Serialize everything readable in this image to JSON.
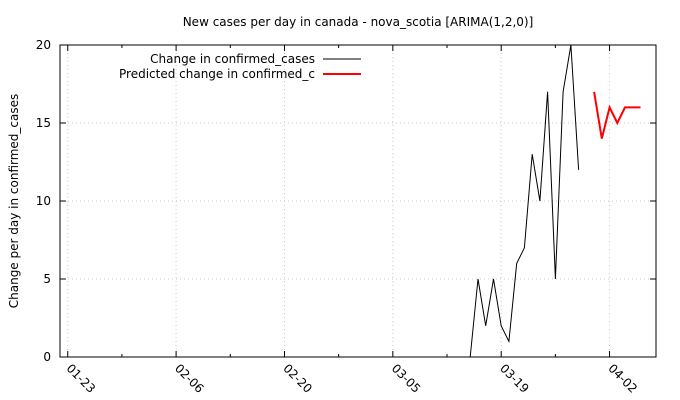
{
  "chart_data": {
    "type": "line",
    "title": "New cases per day in canada - nova_scotia [ARIMA(1,2,0)]",
    "xlabel": "",
    "ylabel": "Change per day in confirmed_cases",
    "ylim": [
      0,
      20
    ],
    "x_is_date": true,
    "x_ticks": [
      "01-23",
      "02-06",
      "02-20",
      "03-05",
      "03-19",
      "04-02"
    ],
    "y_ticks": [
      0,
      5,
      10,
      15,
      20
    ],
    "grid": true,
    "legend_position": "top-left",
    "series": [
      {
        "name": "Change in confirmed_cases",
        "color": "#000000",
        "x": [
          "03-15",
          "03-16",
          "03-17",
          "03-18",
          "03-19",
          "03-20",
          "03-21",
          "03-22",
          "03-23",
          "03-24",
          "03-25",
          "03-26",
          "03-27",
          "03-28",
          "03-29"
        ],
        "values": [
          0,
          5,
          2,
          5,
          2,
          1,
          6,
          7,
          13,
          10,
          17,
          5,
          17,
          20,
          12
        ]
      },
      {
        "name": "Predicted change in confirmed_c",
        "color": "#ff0000",
        "x": [
          "03-31",
          "04-01",
          "04-02",
          "04-03",
          "04-04",
          "04-05",
          "04-06"
        ],
        "values": [
          17,
          14,
          16,
          15,
          16,
          16,
          16
        ]
      }
    ]
  }
}
